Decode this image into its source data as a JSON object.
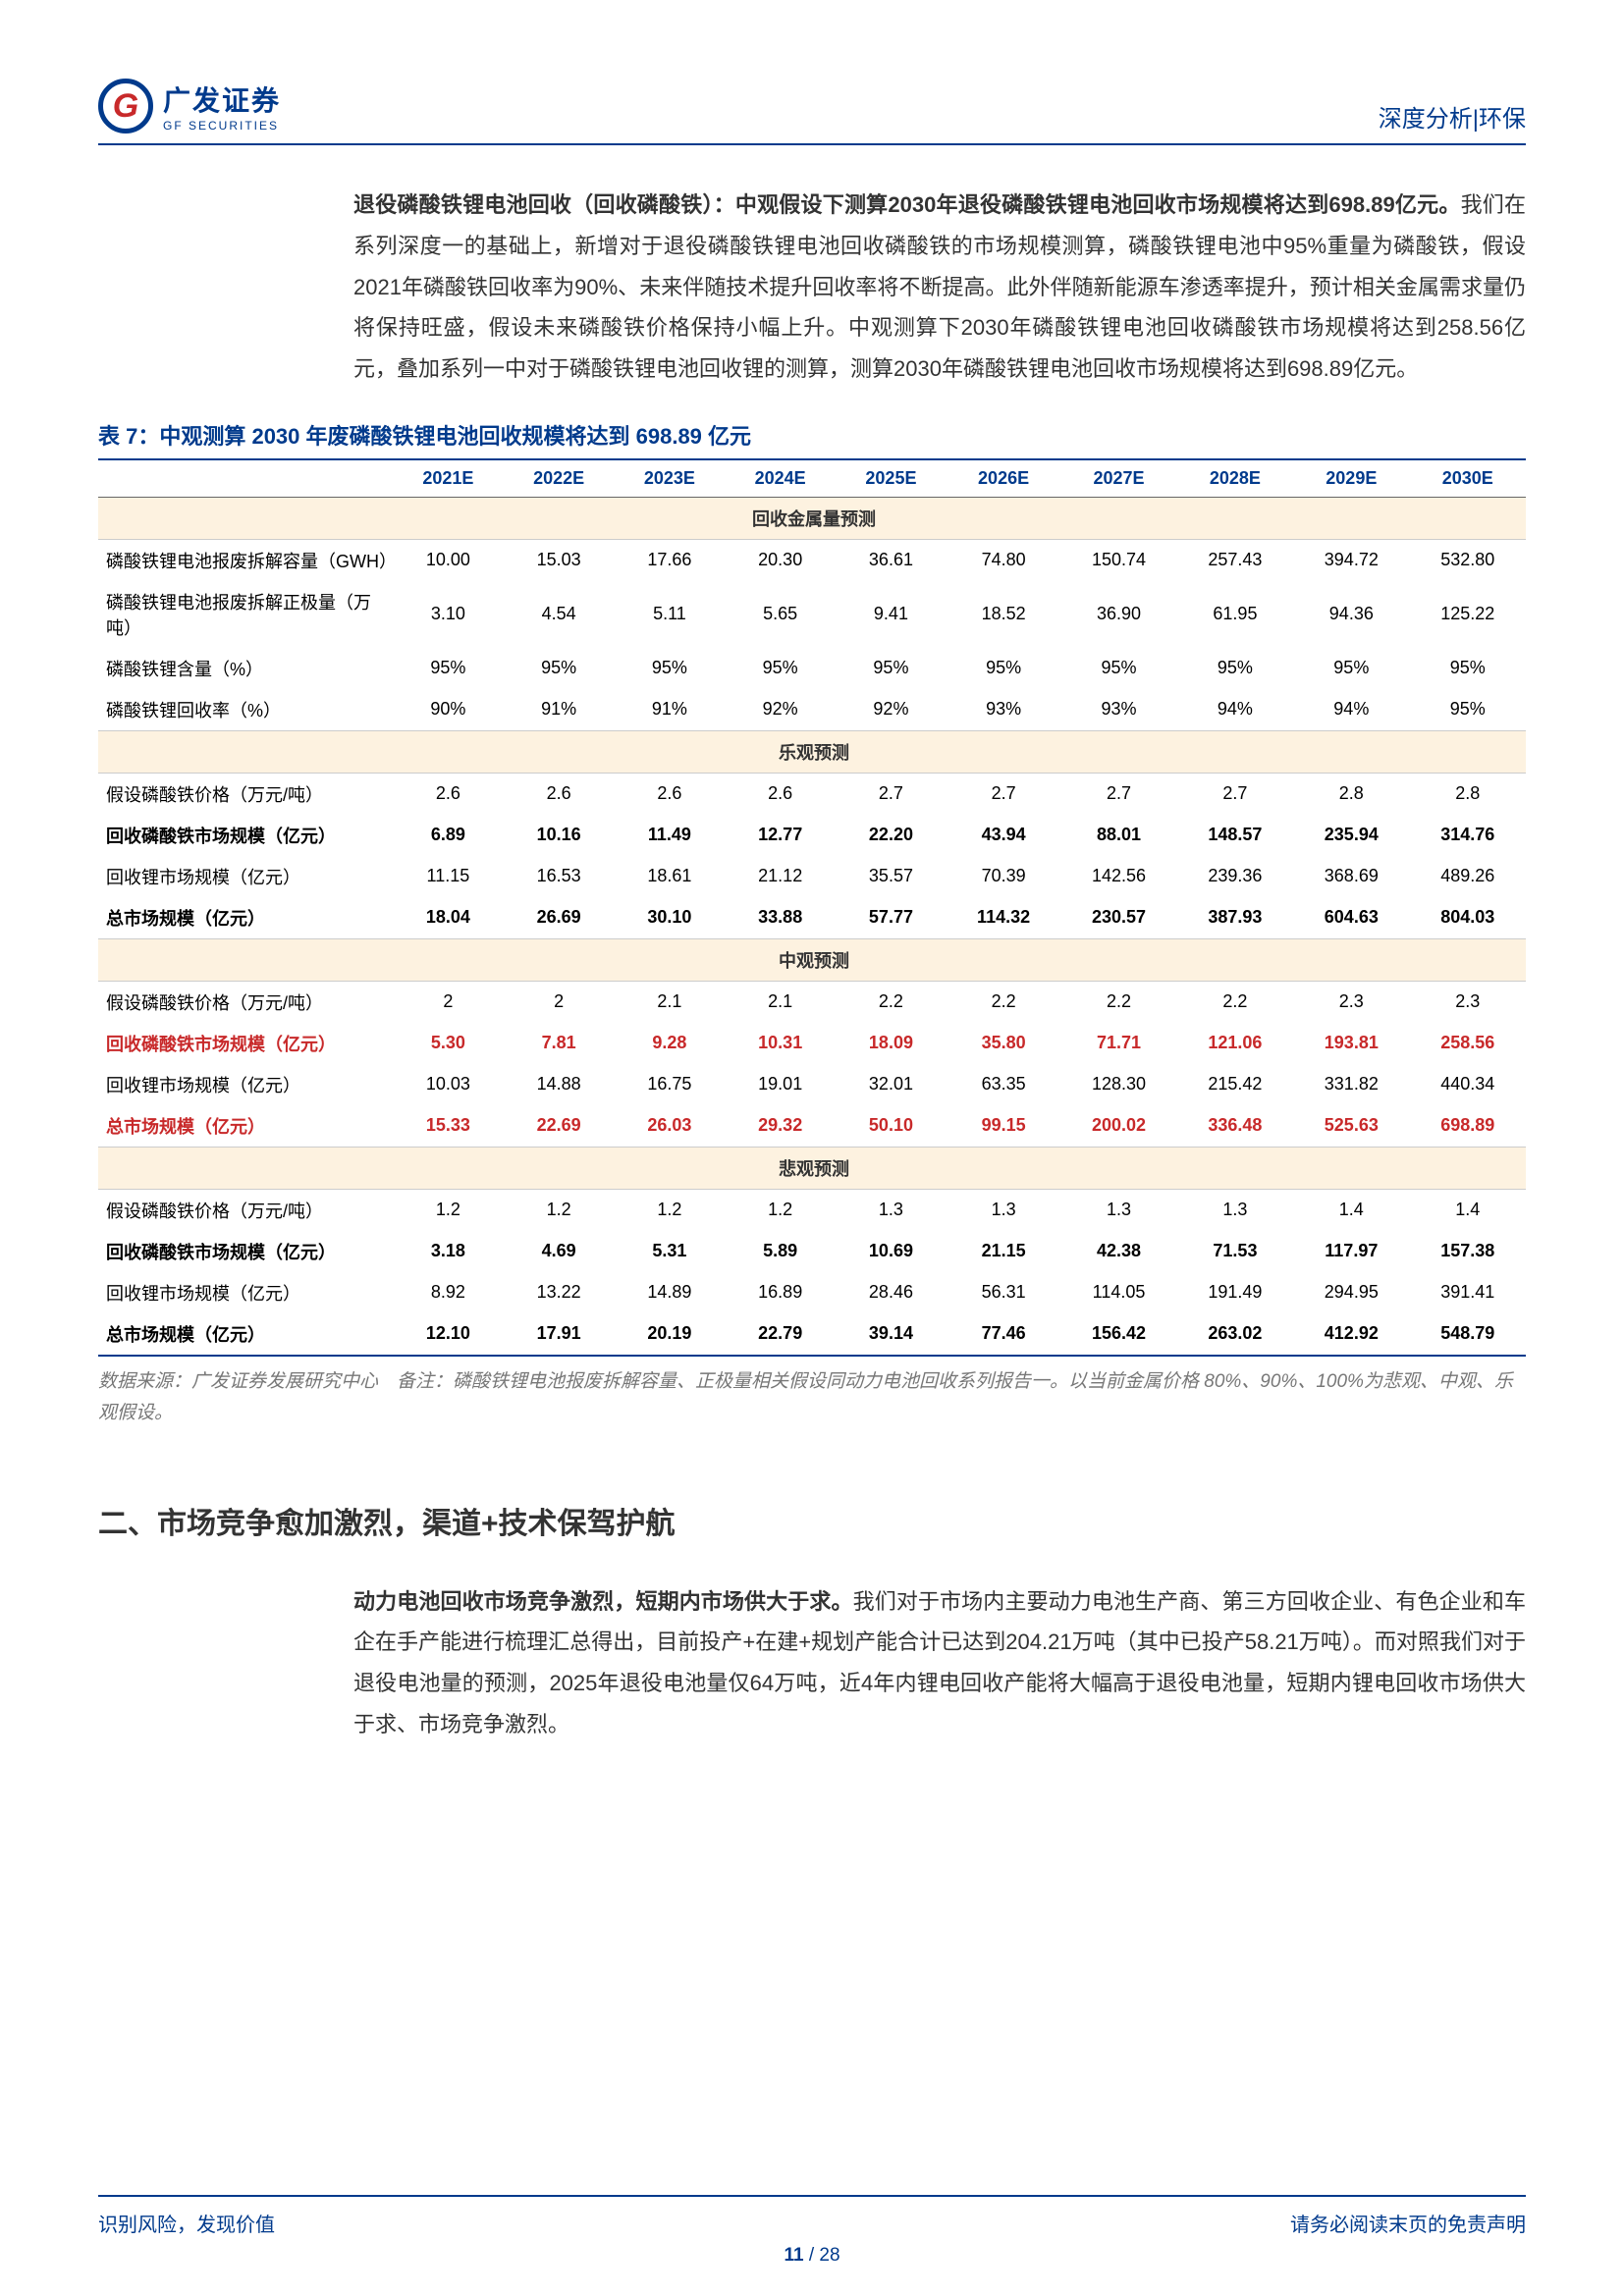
{
  "header": {
    "logo_cn": "广发证券",
    "logo_en": "GF SECURITIES",
    "right": "深度分析|环保"
  },
  "para1": {
    "bold": "退役磷酸铁锂电池回收（回收磷酸铁）：中观假设下测算2030年退役磷酸铁锂电池回收市场规模将达到698.89亿元。",
    "rest": "我们在系列深度一的基础上，新增对于退役磷酸铁锂电池回收磷酸铁的市场规模测算，磷酸铁锂电池中95%重量为磷酸铁，假设2021年磷酸铁回收率为90%、未来伴随技术提升回收率将不断提高。此外伴随新能源车渗透率提升，预计相关金属需求量仍将保持旺盛，假设未来磷酸铁价格保持小幅上升。中观测算下2030年磷酸铁锂电池回收磷酸铁市场规模将达到258.56亿元，叠加系列一中对于磷酸铁锂电池回收锂的测算，测算2030年磷酸铁锂电池回收市场规模将达到698.89亿元。"
  },
  "table": {
    "title": "表 7：中观测算 2030 年废磷酸铁锂电池回收规模将达到 698.89 亿元",
    "years": [
      "2021E",
      "2022E",
      "2023E",
      "2024E",
      "2025E",
      "2026E",
      "2027E",
      "2028E",
      "2029E",
      "2030E"
    ],
    "sec1": "回收金属量预测",
    "r1": {
      "label": "磷酸铁锂电池报废拆解容量（GWH）",
      "v": [
        "10.00",
        "15.03",
        "17.66",
        "20.30",
        "36.61",
        "74.80",
        "150.74",
        "257.43",
        "394.72",
        "532.80"
      ]
    },
    "r2": {
      "label": "磷酸铁锂电池报废拆解正极量（万吨）",
      "v": [
        "3.10",
        "4.54",
        "5.11",
        "5.65",
        "9.41",
        "18.52",
        "36.90",
        "61.95",
        "94.36",
        "125.22"
      ]
    },
    "r3": {
      "label": "磷酸铁锂含量（%）",
      "v": [
        "95%",
        "95%",
        "95%",
        "95%",
        "95%",
        "95%",
        "95%",
        "95%",
        "95%",
        "95%"
      ]
    },
    "r4": {
      "label": "磷酸铁锂回收率（%）",
      "v": [
        "90%",
        "91%",
        "91%",
        "92%",
        "92%",
        "93%",
        "93%",
        "94%",
        "94%",
        "95%"
      ]
    },
    "sec2": "乐观预测",
    "r5": {
      "label": "假设磷酸铁价格（万元/吨）",
      "v": [
        "2.6",
        "2.6",
        "2.6",
        "2.6",
        "2.7",
        "2.7",
        "2.7",
        "2.7",
        "2.8",
        "2.8"
      ]
    },
    "r6": {
      "label": "回收磷酸铁市场规模（亿元）",
      "v": [
        "6.89",
        "10.16",
        "11.49",
        "12.77",
        "22.20",
        "43.94",
        "88.01",
        "148.57",
        "235.94",
        "314.76"
      ]
    },
    "r7": {
      "label": "回收锂市场规模（亿元）",
      "v": [
        "11.15",
        "16.53",
        "18.61",
        "21.12",
        "35.57",
        "70.39",
        "142.56",
        "239.36",
        "368.69",
        "489.26"
      ]
    },
    "r8": {
      "label": "总市场规模（亿元）",
      "v": [
        "18.04",
        "26.69",
        "30.10",
        "33.88",
        "57.77",
        "114.32",
        "230.57",
        "387.93",
        "604.63",
        "804.03"
      ]
    },
    "sec3": "中观预测",
    "r9": {
      "label": "假设磷酸铁价格（万元/吨）",
      "v": [
        "2",
        "2",
        "2.1",
        "2.1",
        "2.2",
        "2.2",
        "2.2",
        "2.2",
        "2.3",
        "2.3"
      ]
    },
    "r10": {
      "label": "回收磷酸铁市场规模（亿元）",
      "v": [
        "5.30",
        "7.81",
        "9.28",
        "10.31",
        "18.09",
        "35.80",
        "71.71",
        "121.06",
        "193.81",
        "258.56"
      ]
    },
    "r11": {
      "label": "回收锂市场规模（亿元）",
      "v": [
        "10.03",
        "14.88",
        "16.75",
        "19.01",
        "32.01",
        "63.35",
        "128.30",
        "215.42",
        "331.82",
        "440.34"
      ]
    },
    "r12": {
      "label": "总市场规模（亿元）",
      "v": [
        "15.33",
        "22.69",
        "26.03",
        "29.32",
        "50.10",
        "99.15",
        "200.02",
        "336.48",
        "525.63",
        "698.89"
      ]
    },
    "sec4": "悲观预测",
    "r13": {
      "label": "假设磷酸铁价格（万元/吨）",
      "v": [
        "1.2",
        "1.2",
        "1.2",
        "1.2",
        "1.3",
        "1.3",
        "1.3",
        "1.3",
        "1.4",
        "1.4"
      ]
    },
    "r14": {
      "label": "回收磷酸铁市场规模（亿元）",
      "v": [
        "3.18",
        "4.69",
        "5.31",
        "5.89",
        "10.69",
        "21.15",
        "42.38",
        "71.53",
        "117.97",
        "157.38"
      ]
    },
    "r15": {
      "label": "回收锂市场规模（亿元）",
      "v": [
        "8.92",
        "13.22",
        "14.89",
        "16.89",
        "28.46",
        "56.31",
        "114.05",
        "191.49",
        "294.95",
        "391.41"
      ]
    },
    "r16": {
      "label": "总市场规模（亿元）",
      "v": [
        "12.10",
        "17.91",
        "20.19",
        "22.79",
        "39.14",
        "77.46",
        "156.42",
        "263.02",
        "412.92",
        "548.79"
      ]
    },
    "source": "数据来源：广发证券发展研究中心 备注：磷酸铁锂电池报废拆解容量、正极量相关假设同动力电池回收系列报告一。以当前金属价格 80%、90%、100%为悲观、中观、乐观假设。"
  },
  "heading2": "二、市场竞争愈加激烈，渠道+技术保驾护航",
  "para2": {
    "bold": "动力电池回收市场竞争激烈，短期内市场供大于求。",
    "rest": "我们对于市场内主要动力电池生产商、第三方回收企业、有色企业和车企在手产能进行梳理汇总得出，目前投产+在建+规划产能合计已达到204.21万吨（其中已投产58.21万吨）。而对照我们对于退役电池量的预测，2025年退役电池量仅64万吨，近4年内锂电回收产能将大幅高于退役电池量，短期内锂电回收市场供大于求、市场竞争激烈。"
  },
  "footer": {
    "left": "识别风险，发现价值",
    "right": "请务必阅读末页的免责声明",
    "page_cur": "11",
    "page_total": "28"
  }
}
